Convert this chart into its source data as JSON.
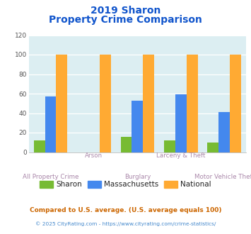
{
  "title_line1": "2019 Sharon",
  "title_line2": "Property Crime Comparison",
  "groups": [
    "All Property Crime",
    "Arson",
    "Burglary",
    "Larceny & Theft",
    "Motor Vehicle Theft"
  ],
  "sharon": [
    12,
    0,
    16,
    12,
    10
  ],
  "massachusetts": [
    57,
    0,
    53,
    59,
    41
  ],
  "national": [
    100,
    100,
    100,
    100,
    100
  ],
  "sharon_color": "#77bb33",
  "mass_color": "#4488ee",
  "national_color": "#ffaa33",
  "bg_color": "#dceef2",
  "ylim": [
    0,
    120
  ],
  "yticks": [
    0,
    20,
    40,
    60,
    80,
    100,
    120
  ],
  "title_color": "#1155cc",
  "xlabel_color_top": "#aa88aa",
  "xlabel_color_bottom": "#aa88aa",
  "legend_sharon": "Sharon",
  "legend_mass": "Massachusetts",
  "legend_national": "National",
  "footnote1": "Compared to U.S. average. (U.S. average equals 100)",
  "footnote2": "© 2025 CityRating.com - https://www.cityrating.com/crime-statistics/",
  "footnote1_color": "#cc6600",
  "footnote2_color": "#4488cc"
}
